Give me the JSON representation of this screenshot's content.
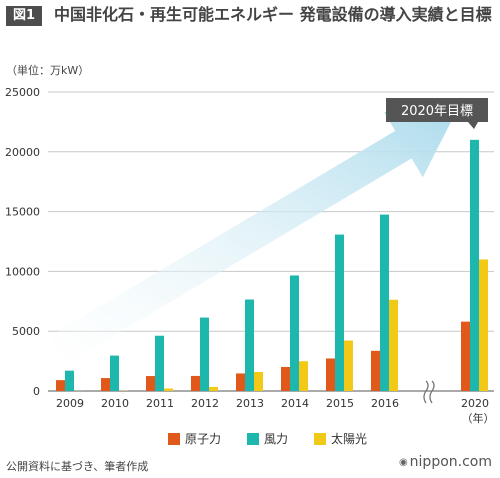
{
  "figure_label": "図1",
  "title": "中国非化石・再生可能エネルギー 発電設備の導入実績と目標",
  "unit_label": "（単位：万kW）",
  "target_label": "2020年目標",
  "source": "公開資料に基づき、筆者作成",
  "brand": "nippon.com",
  "colors": {
    "nuclear": "#e0591b",
    "wind": "#1eb7ad",
    "solar": "#f3c918",
    "arrow": "#aedcec"
  },
  "chart_data": {
    "type": "bar",
    "categories": [
      "2009",
      "2010",
      "2011",
      "2012",
      "2013",
      "2014",
      "2015",
      "2016",
      "2020"
    ],
    "series": [
      {
        "name": "原子力",
        "values": [
          910,
          1080,
          1250,
          1260,
          1470,
          2010,
          2720,
          3360,
          5800
        ]
      },
      {
        "name": "風力",
        "values": [
          1700,
          2960,
          4620,
          6140,
          7650,
          9660,
          13080,
          14750,
          21000
        ]
      },
      {
        "name": "太陽光",
        "values": [
          10,
          20,
          210,
          340,
          1590,
          2490,
          4220,
          7630,
          11000
        ]
      }
    ],
    "ylim": [
      0,
      25000
    ],
    "yticks": [
      0,
      5000,
      10000,
      15000,
      20000,
      25000
    ],
    "xlabel": "（年）",
    "ylabel": "",
    "axis_break_between": [
      "2016",
      "2020"
    ],
    "grid": true,
    "legend_position": "bottom"
  }
}
